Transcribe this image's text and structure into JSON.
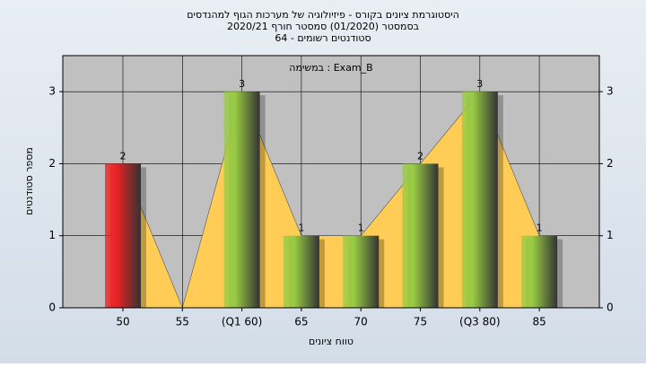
{
  "chart_data": {
    "type": "bar",
    "title_lines": [
      "היסטוגרמת ציונים בקורס - פיזיולוגיה של מערכות הגוף למהנדסים",
      "בסמסטר  (01/2020)  סמסטר חורף 2020/21",
      "סטודנטים רשומים - 64"
    ],
    "annotation": "במשימה : Exam_B",
    "x_label": "טווח ציונים",
    "y_label": "מספר סטודנטים",
    "categories": [
      "50",
      "55",
      "(Q1 60)",
      "65",
      "70",
      "75",
      "(Q3 80)",
      "85"
    ],
    "values": [
      2,
      0,
      3,
      1,
      1,
      2,
      3,
      1
    ],
    "colors": [
      "#ee2222",
      "#99cc44",
      "#99cc44",
      "#99cc44",
      "#99cc44",
      "#99cc44",
      "#99cc44",
      "#99cc44"
    ],
    "area_color": "#ffcc55",
    "ylim": [
      0,
      3.5
    ],
    "yticks": [
      0,
      1,
      2,
      3
    ],
    "grid": true,
    "right_axis": true
  }
}
